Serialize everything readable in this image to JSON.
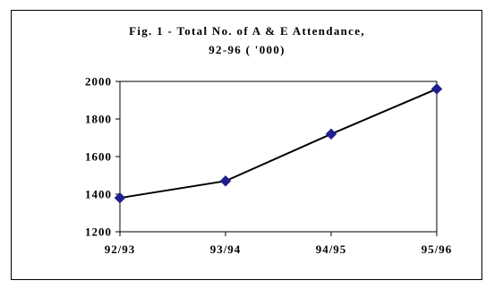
{
  "chart_data": {
    "type": "line",
    "title_lines": [
      "Fig. 1 - Total No. of A & E Attendance,",
      "92-96  ( '000)"
    ],
    "categories": [
      "92/93",
      "93/94",
      "94/95",
      "95/96"
    ],
    "series": [
      {
        "values": [
          1380,
          1470,
          1720,
          1960
        ]
      }
    ],
    "ylim": [
      1200,
      2000
    ],
    "yticks": [
      1200,
      1400,
      1600,
      1800,
      2000
    ],
    "xlabel": "",
    "ylabel": "",
    "grid": false,
    "legend": "none",
    "line_color": "#000000",
    "marker_color": "#1f1f8c",
    "marker": "diamond"
  }
}
